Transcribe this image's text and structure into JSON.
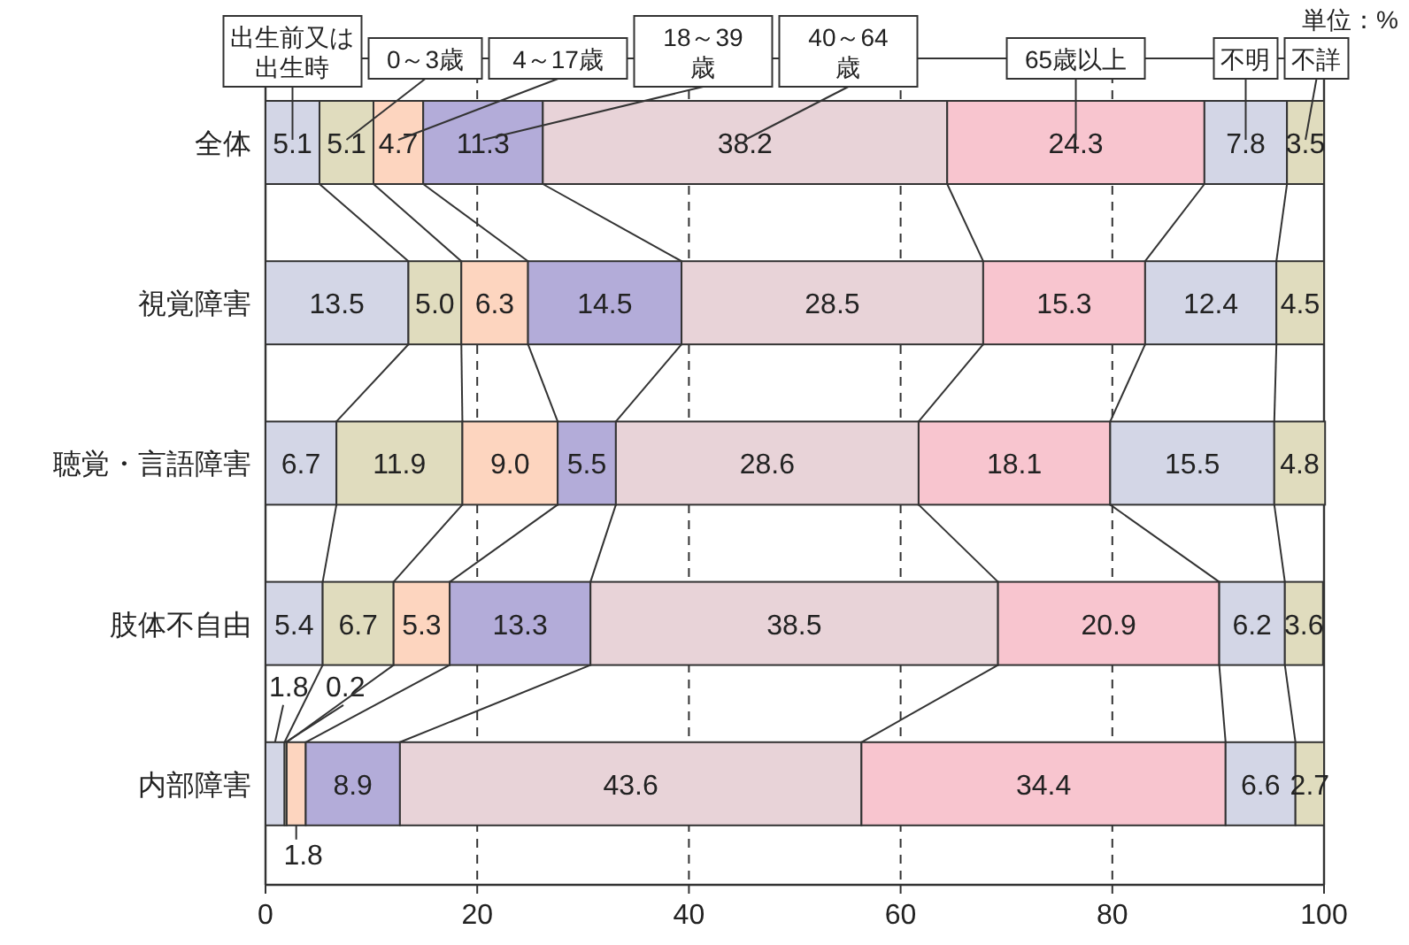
{
  "chart_data": {
    "type": "bar",
    "orientation": "horizontal",
    "stacked": true,
    "categories": [
      "全体",
      "視覚障害",
      "聴覚・言語障害",
      "肢体不自由",
      "内部障害"
    ],
    "series": [
      {
        "name": "出生前又は出生時",
        "color": "#d3d6e6",
        "values": [
          5.1,
          13.5,
          6.7,
          5.4,
          1.8
        ]
      },
      {
        "name": "0～3歳",
        "color": "#e0dcbe",
        "values": [
          5.1,
          5.0,
          11.9,
          6.7,
          0.2
        ],
        "value_labels": [
          "5.1",
          "5.0",
          "11.9",
          "6.7",
          "0.2"
        ]
      },
      {
        "name": "4～17歳",
        "color": "#fdd5bf",
        "values": [
          4.7,
          6.3,
          9.0,
          5.3,
          1.8
        ],
        "value_labels": [
          "4.7",
          "6.3",
          "9.0",
          "5.3",
          "1.8"
        ]
      },
      {
        "name": "18～39歳",
        "color": "#b3acd9",
        "values": [
          11.3,
          14.5,
          5.5,
          13.3,
          8.9
        ]
      },
      {
        "name": "40～64歳",
        "color": "#e8d3d8",
        "values": [
          38.2,
          28.5,
          28.6,
          38.5,
          43.6
        ]
      },
      {
        "name": "65歳以上",
        "color": "#f8c5cf",
        "values": [
          24.3,
          15.3,
          18.1,
          20.9,
          34.4
        ]
      },
      {
        "name": "不明",
        "color": "#d3d6e6",
        "values": [
          7.8,
          12.4,
          15.5,
          6.2,
          6.6
        ]
      },
      {
        "name": "不詳",
        "color": "#e0dcbe",
        "values": [
          3.5,
          4.5,
          4.8,
          3.6,
          2.7
        ]
      }
    ],
    "xlim": [
      0,
      100
    ],
    "xticks": [
      0,
      20,
      40,
      60,
      80,
      100
    ],
    "grid": "x",
    "legend": "top",
    "data_labels": true,
    "annotations": [
      "単位：%"
    ]
  }
}
